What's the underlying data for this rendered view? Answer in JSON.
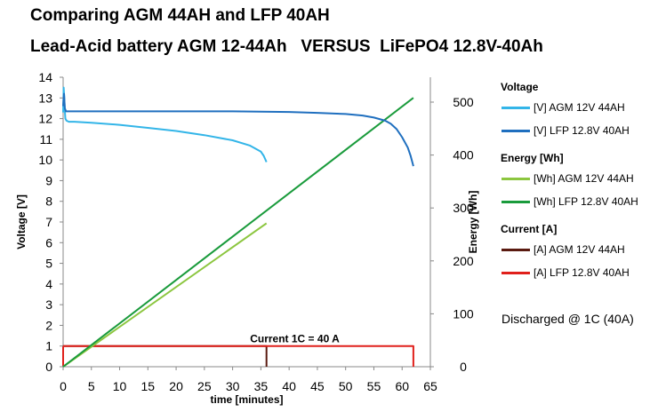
{
  "chart_data": {
    "type": "line",
    "title": "Comparing AGM 44AH and LFP 40AH",
    "subtitle": "Lead-Acid battery AGM 12-44Ah   VERSUS  LiFePO4 12.8V-40Ah",
    "xlabel": "time [minutes]",
    "ylabel_left": "Voltage [V]",
    "ylabel_right": "Energy [Wh]",
    "xlim": [
      0,
      65
    ],
    "ylim_left": [
      0,
      14
    ],
    "ylim_right": [
      0,
      547
    ],
    "x_ticks": [
      "0",
      "5",
      "10",
      "15",
      "20",
      "25",
      "30",
      "35",
      "40",
      "45",
      "50",
      "55",
      "60",
      "65"
    ],
    "y_left_ticks": [
      "0",
      "1",
      "2",
      "3",
      "4",
      "5",
      "6",
      "7",
      "8",
      "9",
      "10",
      "11",
      "12",
      "13",
      "14"
    ],
    "y_right_ticks": [
      {
        "label": "0",
        "value": 0
      },
      {
        "label": "100",
        "value": 100
      },
      {
        "label": "200",
        "value": 200
      },
      {
        "label": "300",
        "value": 300
      },
      {
        "label": "400",
        "value": 400
      },
      {
        "label": "500",
        "value": 500
      }
    ],
    "legend_position": "right",
    "grid": false,
    "annotation": "Current 1C = 40 A",
    "note": "Discharged @ 1C (40A)",
    "legend_groups": [
      {
        "title": "Voltage",
        "items": [
          "[V] AGM 12V  44AH",
          "[V] LFP 12.8V 40AH"
        ]
      },
      {
        "title": "Energy [Wh]",
        "items": [
          "[Wh] AGM 12V  44AH",
          "[Wh] LFP 12.8V 40AH"
        ]
      },
      {
        "title": "Current [A]",
        "items": [
          "[A] AGM 12V 44AH",
          "[A] LFP 12.8V 40AH"
        ]
      }
    ],
    "series": [
      {
        "name": "[V] AGM 12V  44AH",
        "axis": "left",
        "color": "#33b5e8",
        "width": 2,
        "x": [
          0,
          0.1,
          0.2,
          0.3,
          0.4,
          0.6,
          1,
          2,
          5,
          10,
          15,
          20,
          25,
          30,
          33,
          35,
          35.5,
          36
        ],
        "y": [
          12.3,
          13.5,
          13.0,
          12.4,
          12.0,
          11.9,
          11.85,
          11.85,
          11.8,
          11.7,
          11.55,
          11.4,
          11.2,
          10.95,
          10.7,
          10.4,
          10.2,
          9.9
        ]
      },
      {
        "name": "[V] LFP 12.8V 40AH",
        "axis": "left",
        "color": "#1f6fbf",
        "width": 2,
        "x": [
          0,
          0.15,
          0.3,
          0.5,
          1,
          5,
          10,
          20,
          30,
          40,
          45,
          50,
          53,
          55,
          57,
          58,
          59,
          60,
          61,
          61.5,
          62
        ],
        "y": [
          12.6,
          13.2,
          12.5,
          12.35,
          12.35,
          12.35,
          12.35,
          12.35,
          12.35,
          12.32,
          12.28,
          12.22,
          12.15,
          12.05,
          11.9,
          11.75,
          11.5,
          11.1,
          10.6,
          10.2,
          9.7
        ]
      },
      {
        "name": "[Wh] AGM 12V  44AH",
        "axis": "right",
        "color": "#8cc63f",
        "width": 2,
        "x": [
          0,
          36
        ],
        "y": [
          0,
          271
        ]
      },
      {
        "name": "[Wh] LFP 12.8V 40AH",
        "axis": "right",
        "color": "#1a9b3c",
        "width": 2,
        "x": [
          0,
          62
        ],
        "y": [
          0,
          508
        ]
      },
      {
        "name": "[A] AGM 12V 44AH",
        "axis": "left",
        "color": "#5a1a10",
        "width": 2,
        "x": [
          0,
          0,
          36,
          36
        ],
        "y": [
          0,
          1,
          1,
          0
        ]
      },
      {
        "name": "[A] LFP 12.8V 40AH",
        "axis": "left",
        "color": "#e0201b",
        "width": 2,
        "x": [
          0,
          0,
          62,
          62
        ],
        "y": [
          0,
          1,
          1,
          0
        ]
      }
    ]
  }
}
